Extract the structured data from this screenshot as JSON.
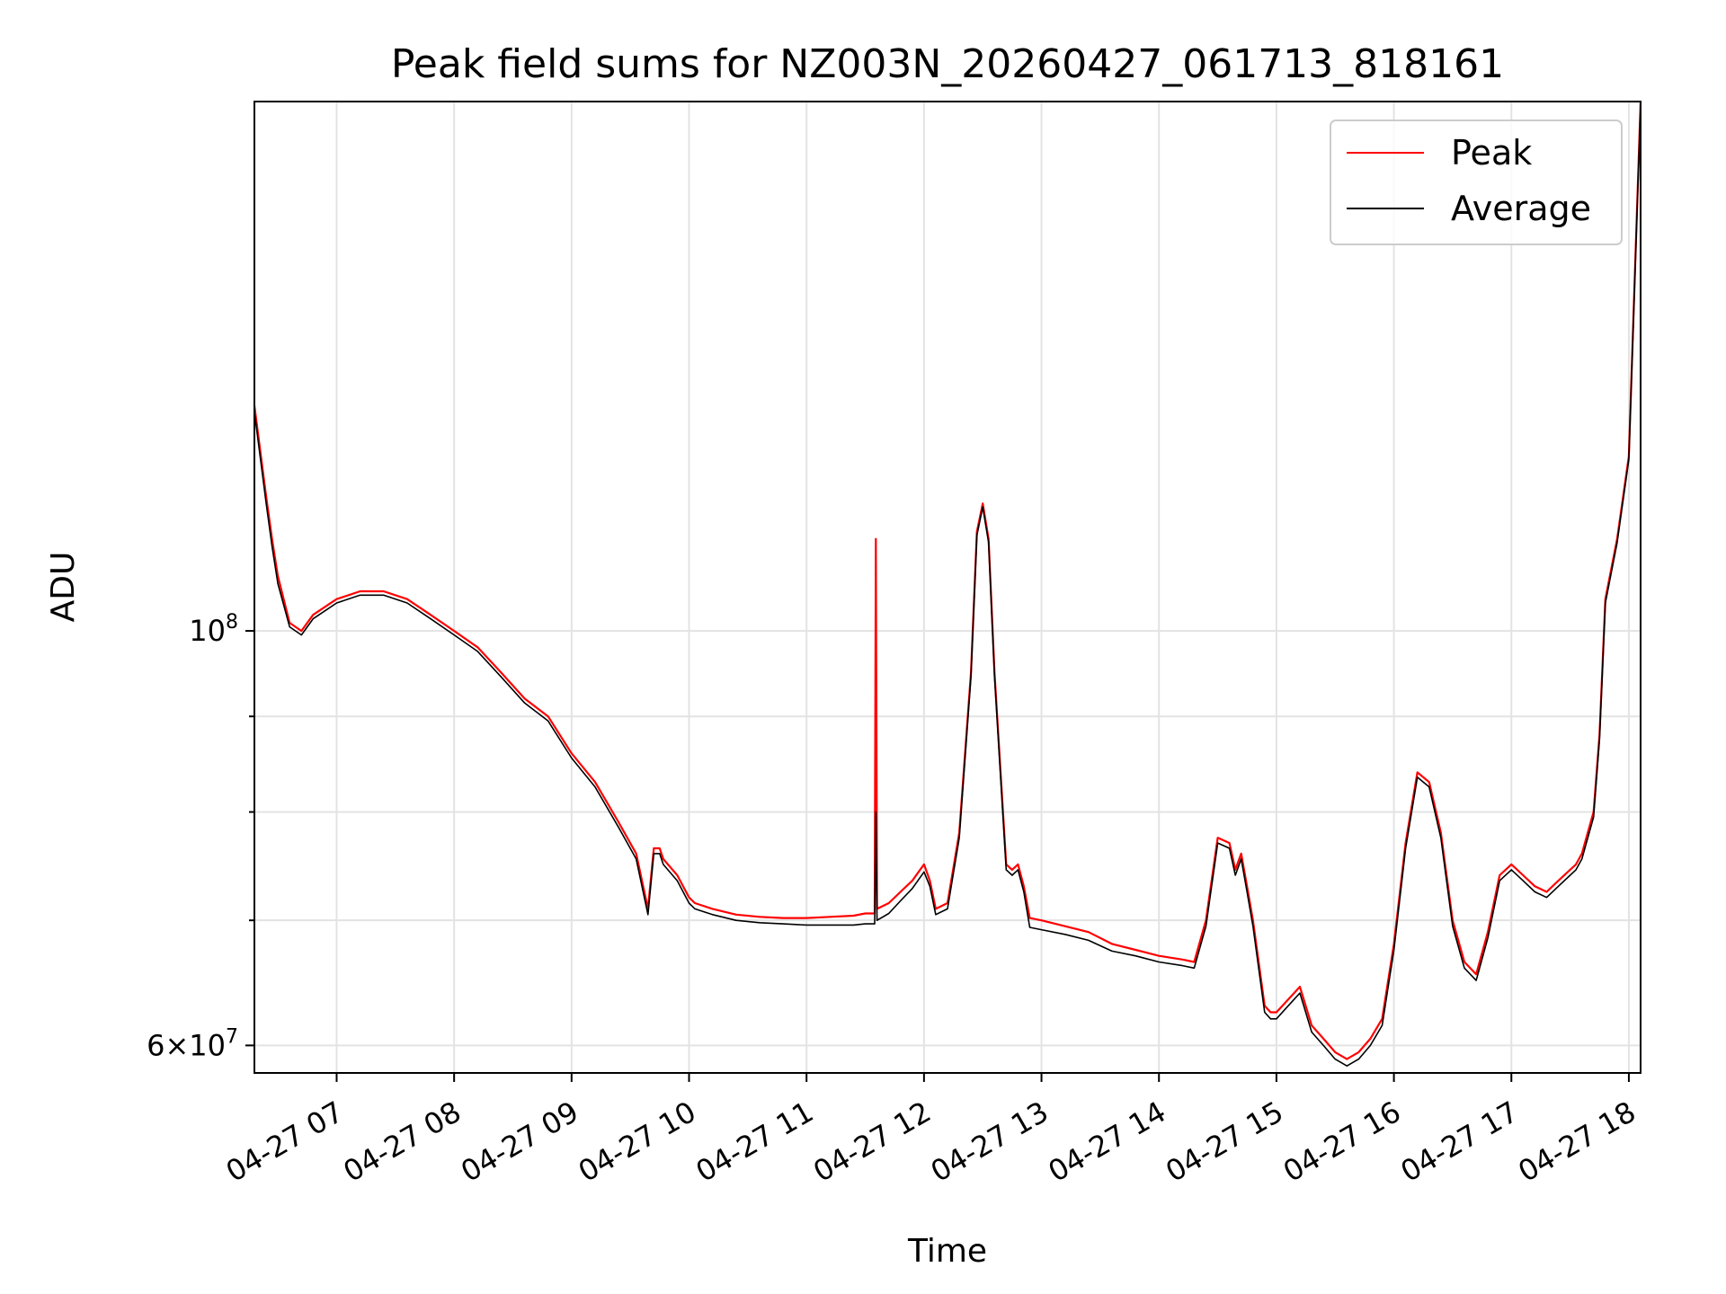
{
  "chart_data": {
    "type": "line",
    "title": "Peak field sums for NZ003N_20260427_061713_818161",
    "xlabel": "Time",
    "ylabel": "ADU",
    "y_scale": "log",
    "ylim": [
      58000000,
      192000000
    ],
    "xlim": [
      6.3,
      18.1
    ],
    "grid": true,
    "legend": {
      "placement": "top-right",
      "entries": [
        "Peak",
        "Average"
      ]
    },
    "x_ticks": [
      {
        "value": 7,
        "label": "04-27 07"
      },
      {
        "value": 8,
        "label": "04-27 08"
      },
      {
        "value": 9,
        "label": "04-27 09"
      },
      {
        "value": 10,
        "label": "04-27 10"
      },
      {
        "value": 11,
        "label": "04-27 11"
      },
      {
        "value": 12,
        "label": "04-27 12"
      },
      {
        "value": 13,
        "label": "04-27 13"
      },
      {
        "value": 14,
        "label": "04-27 14"
      },
      {
        "value": 15,
        "label": "04-27 15"
      },
      {
        "value": 16,
        "label": "04-27 16"
      },
      {
        "value": 17,
        "label": "04-27 17"
      },
      {
        "value": 18,
        "label": "04-27 18"
      }
    ],
    "y_ticks": [
      {
        "value": 60000000,
        "base": "6×10",
        "exp": "7"
      },
      {
        "value": 100000000,
        "base": "10",
        "exp": "8"
      }
    ],
    "y_minor_ticks": [
      70000000,
      80000000,
      90000000
    ],
    "series": [
      {
        "name": "Peak",
        "color": "#ff0000",
        "x": [
          6.3,
          6.4,
          6.45,
          6.5,
          6.6,
          6.7,
          6.8,
          6.9,
          7.0,
          7.2,
          7.4,
          7.6,
          7.8,
          8.0,
          8.2,
          8.4,
          8.6,
          8.8,
          9.0,
          9.2,
          9.4,
          9.55,
          9.65,
          9.7,
          9.75,
          9.78,
          9.9,
          10.0,
          10.05,
          10.2,
          10.4,
          10.6,
          10.8,
          11.0,
          11.2,
          11.4,
          11.5,
          11.58,
          11.59,
          11.6,
          11.7,
          11.8,
          11.9,
          12.0,
          12.05,
          12.1,
          12.2,
          12.3,
          12.4,
          12.45,
          12.5,
          12.55,
          12.6,
          12.7,
          12.75,
          12.8,
          12.85,
          12.9,
          13.0,
          13.2,
          13.4,
          13.6,
          13.8,
          14.0,
          14.2,
          14.3,
          14.4,
          14.5,
          14.6,
          14.65,
          14.7,
          14.75,
          14.8,
          14.9,
          14.95,
          15.0,
          15.1,
          15.2,
          15.3,
          15.4,
          15.5,
          15.6,
          15.7,
          15.8,
          15.9,
          16.0,
          16.1,
          16.2,
          16.3,
          16.4,
          16.5,
          16.6,
          16.7,
          16.8,
          16.9,
          17.0,
          17.1,
          17.2,
          17.3,
          17.4,
          17.5,
          17.55,
          17.6,
          17.7,
          17.75,
          17.8,
          17.9,
          18.0,
          18.1
        ],
        "y": [
          132000000,
          118000000,
          112000000,
          107000000,
          101000000,
          100000000,
          102000000,
          103000000,
          104000000,
          105000000,
          105000000,
          104000000,
          102000000,
          100000000,
          98000000,
          95000000,
          92000000,
          90000000,
          86000000,
          83000000,
          79000000,
          76000000,
          71000000,
          76500000,
          76500000,
          75500000,
          74000000,
          72000000,
          71500000,
          71000000,
          70500000,
          70300000,
          70200000,
          70200000,
          70300000,
          70400000,
          70600000,
          70600000,
          112000000,
          71000000,
          71500000,
          72500000,
          73500000,
          75000000,
          73500000,
          71000000,
          71500000,
          78000000,
          95000000,
          113000000,
          117000000,
          112000000,
          95000000,
          75000000,
          74500000,
          75000000,
          73000000,
          70200000,
          70000000,
          69500000,
          69000000,
          68000000,
          67500000,
          67000000,
          66700000,
          66500000,
          70000000,
          77500000,
          77000000,
          74500000,
          76000000,
          73000000,
          70000000,
          63000000,
          62500000,
          62500000,
          63500000,
          64500000,
          61500000,
          60500000,
          59500000,
          59000000,
          59500000,
          60500000,
          62000000,
          68000000,
          77000000,
          84000000,
          83000000,
          78000000,
          70000000,
          66500000,
          65500000,
          69000000,
          74000000,
          75000000,
          74000000,
          73000000,
          72500000,
          73500000,
          74500000,
          75000000,
          76000000,
          80000000,
          88000000,
          104000000,
          112000000,
          124000000,
          192000000
        ]
      },
      {
        "name": "Average",
        "color": "#000000",
        "x": [
          6.3,
          6.4,
          6.45,
          6.5,
          6.6,
          6.7,
          6.8,
          6.9,
          7.0,
          7.2,
          7.4,
          7.6,
          7.8,
          8.0,
          8.2,
          8.4,
          8.6,
          8.8,
          9.0,
          9.2,
          9.4,
          9.55,
          9.65,
          9.7,
          9.75,
          9.78,
          9.9,
          10.0,
          10.05,
          10.2,
          10.4,
          10.6,
          10.8,
          11.0,
          11.2,
          11.4,
          11.5,
          11.58,
          11.59,
          11.6,
          11.7,
          11.8,
          11.9,
          12.0,
          12.05,
          12.1,
          12.2,
          12.3,
          12.4,
          12.45,
          12.5,
          12.55,
          12.6,
          12.7,
          12.75,
          12.8,
          12.85,
          12.9,
          13.0,
          13.2,
          13.4,
          13.6,
          13.8,
          14.0,
          14.2,
          14.3,
          14.4,
          14.5,
          14.6,
          14.65,
          14.7,
          14.75,
          14.8,
          14.9,
          14.95,
          15.0,
          15.1,
          15.2,
          15.3,
          15.4,
          15.5,
          15.6,
          15.7,
          15.8,
          15.9,
          16.0,
          16.1,
          16.2,
          16.3,
          16.4,
          16.5,
          16.6,
          16.7,
          16.8,
          16.9,
          17.0,
          17.1,
          17.2,
          17.3,
          17.4,
          17.5,
          17.55,
          17.6,
          17.7,
          17.75,
          17.8,
          17.9,
          18.0,
          18.1
        ],
        "y": [
          131000000,
          117000000,
          111000000,
          106000000,
          100500000,
          99500000,
          101500000,
          102500000,
          103500000,
          104500000,
          104500000,
          103500000,
          101500000,
          99500000,
          97500000,
          94500000,
          91500000,
          89500000,
          85500000,
          82500000,
          78500000,
          75500000,
          70500000,
          76000000,
          76000000,
          75000000,
          73500000,
          71500000,
          71000000,
          70500000,
          70000000,
          69800000,
          69700000,
          69600000,
          69600000,
          69600000,
          69700000,
          69700000,
          80000000,
          70000000,
          70600000,
          71700000,
          72800000,
          74300000,
          73000000,
          70500000,
          71000000,
          77500000,
          94500000,
          112500000,
          116500000,
          111500000,
          94500000,
          74500000,
          74000000,
          74500000,
          72500000,
          69400000,
          69200000,
          68800000,
          68300000,
          67400000,
          67000000,
          66500000,
          66200000,
          66000000,
          69500000,
          77000000,
          76500000,
          74000000,
          75500000,
          72500000,
          69500000,
          62500000,
          62000000,
          62000000,
          63000000,
          64000000,
          61000000,
          60000000,
          59000000,
          58500000,
          59000000,
          60000000,
          61500000,
          67500000,
          76500000,
          83500000,
          82500000,
          77500000,
          69500000,
          66000000,
          65000000,
          68500000,
          73500000,
          74500000,
          73500000,
          72500000,
          72000000,
          73000000,
          74000000,
          74500000,
          75500000,
          79500000,
          87500000,
          103500000,
          111500000,
          123500000,
          191000000
        ]
      }
    ]
  }
}
